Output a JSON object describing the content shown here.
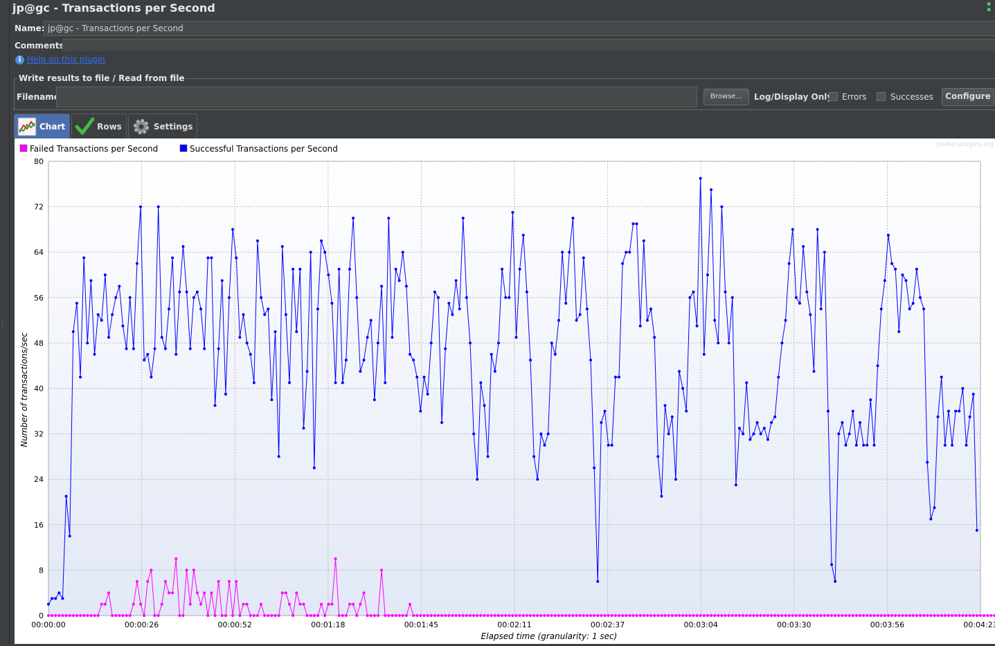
{
  "window": {
    "title": "jp@gc - Transactions per Second"
  },
  "name_row": {
    "label": "Name:",
    "value": "jp@gc - Transactions per Second"
  },
  "comments_row": {
    "label": "Comments:"
  },
  "help": {
    "link_text": "Help on this plugin"
  },
  "file_section": {
    "title": "Write results to file / Read from file",
    "filename_label": "Filename",
    "browse_label": "Browse...",
    "log_display_label": "Log/Display Only:",
    "errors_label": "Errors",
    "successes_label": "Successes",
    "configure_label": "Configure"
  },
  "tabs": [
    {
      "label": "Chart",
      "icon": "chart-icon",
      "active": true
    },
    {
      "label": "Rows",
      "icon": "checkmark-icon",
      "active": false
    },
    {
      "label": "Settings",
      "icon": "gear-icon",
      "active": false
    }
  ],
  "watermark": "jmeter-plugins.org",
  "chart_data": {
    "type": "line",
    "xlabel": "Elapsed time (granularity: 1 sec)",
    "ylabel": "Number of transactions/sec",
    "ylim": [
      0,
      80
    ],
    "yticks": [
      0,
      8,
      16,
      24,
      32,
      40,
      48,
      56,
      64,
      72,
      80
    ],
    "xlim_seconds": [
      0,
      263
    ],
    "xtick_labels": [
      "00:00:00",
      "00:00:26",
      "00:00:52",
      "00:01:18",
      "00:01:45",
      "00:02:11",
      "00:02:37",
      "00:03:04",
      "00:03:30",
      "00:03:56",
      "00:04:23"
    ],
    "grid": true,
    "legend_position": "top-left",
    "series": [
      {
        "name": "Failed Transactions per Second",
        "color": "#ff00ff",
        "values": [
          0,
          0,
          0,
          0,
          0,
          0,
          0,
          0,
          0,
          0,
          0,
          0,
          0,
          0,
          0,
          2,
          2,
          4,
          0,
          0,
          0,
          0,
          0,
          0,
          2,
          6,
          2,
          0,
          6,
          8,
          0,
          0,
          2,
          6,
          4,
          4,
          10,
          0,
          0,
          8,
          2,
          8,
          4,
          2,
          4,
          0,
          4,
          0,
          6,
          0,
          0,
          6,
          0,
          6,
          0,
          2,
          2,
          0,
          0,
          0,
          2,
          0,
          0,
          0,
          0,
          0,
          4,
          4,
          2,
          0,
          4,
          2,
          2,
          0,
          0,
          0,
          0,
          2,
          0,
          2,
          2,
          10,
          0,
          0,
          0,
          2,
          2,
          0,
          2,
          4,
          0,
          0,
          0,
          0,
          8,
          0,
          0,
          0,
          0,
          0,
          0,
          0,
          2,
          0,
          0,
          0,
          0,
          0,
          0,
          0,
          0,
          0,
          0,
          0,
          0,
          0,
          0,
          0,
          0,
          0,
          0,
          0,
          0,
          0,
          0,
          0,
          0,
          0,
          0,
          0,
          0,
          0,
          0,
          0,
          0,
          0,
          0,
          0,
          0,
          0,
          0,
          0,
          0,
          0,
          0,
          0,
          0,
          0,
          0,
          0,
          0,
          0,
          0,
          0,
          0,
          0,
          0,
          0,
          0,
          0,
          0,
          0,
          0,
          0,
          0,
          0,
          0,
          0,
          0,
          0,
          0,
          0,
          0,
          0,
          0,
          0,
          0,
          0,
          0,
          0,
          0,
          0,
          0,
          0,
          0,
          0,
          0,
          0,
          0,
          0,
          0,
          0,
          0,
          0,
          0,
          0,
          0,
          0,
          0,
          0,
          0,
          0,
          0,
          0,
          0,
          0,
          0,
          0,
          0,
          0,
          0,
          0,
          0,
          0,
          0,
          0,
          0,
          0,
          0,
          0,
          0,
          0,
          0,
          0,
          0,
          0,
          0,
          0,
          0,
          0,
          0,
          0,
          0,
          0,
          0,
          0,
          0,
          0,
          0,
          0,
          0,
          0,
          0,
          0,
          0,
          0,
          0,
          0,
          0,
          0,
          0,
          0,
          0,
          0,
          0,
          0,
          0,
          0,
          0,
          0,
          0,
          0,
          0,
          0,
          0,
          0,
          0,
          0,
          0,
          0
        ]
      },
      {
        "name": "Successful Transactions per Second",
        "color": "#0000ff",
        "values": [
          2,
          3,
          3,
          4,
          3,
          21,
          14,
          50,
          55,
          42,
          63,
          48,
          59,
          46,
          53,
          52,
          60,
          49,
          53,
          56,
          58,
          51,
          47,
          56,
          47,
          62,
          72,
          45,
          46,
          42,
          47,
          72,
          49,
          47,
          54,
          63,
          46,
          57,
          65,
          57,
          47,
          56,
          57,
          54,
          47,
          63,
          63,
          37,
          47,
          59,
          39,
          56,
          68,
          63,
          49,
          53,
          48,
          46,
          41,
          66,
          56,
          53,
          54,
          38,
          50,
          28,
          65,
          53,
          41,
          61,
          50,
          61,
          33,
          43,
          64,
          26,
          54,
          66,
          64,
          60,
          55,
          41,
          61,
          41,
          45,
          61,
          70,
          56,
          43,
          45,
          49,
          52,
          38,
          48,
          58,
          41,
          70,
          49,
          61,
          59,
          64,
          58,
          46,
          45,
          42,
          36,
          42,
          39,
          48,
          57,
          56,
          34,
          47,
          55,
          53,
          59,
          54,
          70,
          56,
          48,
          32,
          24,
          41,
          37,
          28,
          46,
          43,
          48,
          61,
          56,
          56,
          71,
          49,
          61,
          67,
          57,
          45,
          28,
          24,
          32,
          30,
          32,
          48,
          46,
          52,
          64,
          55,
          64,
          70,
          52,
          53,
          63,
          54,
          45,
          26,
          6,
          34,
          36,
          30,
          30,
          42,
          42,
          62,
          64,
          64,
          69,
          69,
          51,
          66,
          52,
          54,
          49,
          28,
          21,
          37,
          32,
          35,
          24,
          43,
          40,
          36,
          56,
          57,
          51,
          77,
          46,
          60,
          75,
          52,
          48,
          72,
          57,
          48,
          56,
          23,
          33,
          32,
          41,
          31,
          32,
          34,
          32,
          33,
          31,
          34,
          35,
          42,
          48,
          52,
          62,
          68,
          56,
          55,
          65,
          57,
          53,
          43,
          68,
          54,
          64,
          36,
          9,
          6,
          32,
          34,
          30,
          32,
          36,
          30,
          34,
          30,
          30,
          38,
          30,
          44,
          54,
          59,
          67,
          62,
          61,
          50,
          60,
          59,
          54,
          55,
          61,
          56,
          54,
          27,
          17,
          19,
          35,
          42,
          30,
          36,
          30,
          36,
          36,
          40,
          30,
          35,
          39,
          15
        ]
      }
    ]
  }
}
